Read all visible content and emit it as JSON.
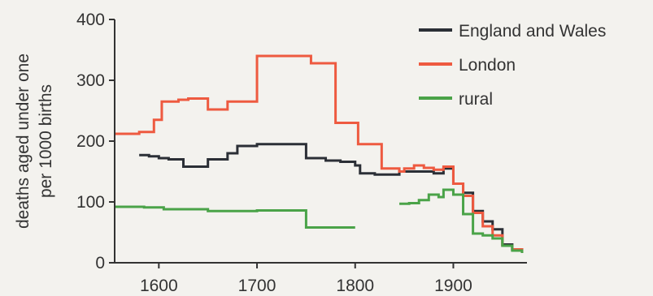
{
  "chart_data": {
    "type": "line",
    "step": true,
    "ylabel_lines": [
      "deaths aged under one",
      "per 1000 births"
    ],
    "xlim": [
      1555,
      1975
    ],
    "ylim": [
      0,
      400
    ],
    "x_ticks": [
      1600,
      1700,
      1800,
      1900
    ],
    "y_ticks": [
      0,
      100,
      200,
      300,
      400
    ],
    "legend_position": "top-right",
    "series": [
      {
        "name": "England and Wales",
        "color": "#2b2f36",
        "segments": [
          [
            [
              1580,
              177
            ],
            [
              1590,
              175
            ],
            [
              1600,
              172
            ],
            [
              1610,
              170
            ],
            [
              1625,
              158
            ],
            [
              1650,
              170
            ],
            [
              1670,
              180
            ],
            [
              1680,
              192
            ],
            [
              1700,
              195
            ],
            [
              1750,
              172
            ],
            [
              1770,
              168
            ],
            [
              1785,
              166
            ],
            [
              1800,
              160
            ],
            [
              1805,
              147
            ],
            [
              1820,
              145
            ],
            [
              1845,
              150
            ],
            [
              1870,
              150
            ],
            [
              1880,
              147
            ],
            [
              1890,
              155
            ],
            [
              1900,
              130
            ],
            [
              1910,
              115
            ],
            [
              1920,
              85
            ],
            [
              1930,
              68
            ],
            [
              1940,
              55
            ],
            [
              1950,
              30
            ],
            [
              1960,
              22
            ],
            [
              1970,
              18
            ]
          ]
        ]
      },
      {
        "name": "London",
        "color": "#ee5a40",
        "segments": [
          [
            [
              1555,
              212
            ],
            [
              1580,
              215
            ],
            [
              1595,
              235
            ],
            [
              1603,
              265
            ],
            [
              1620,
              268
            ],
            [
              1630,
              270
            ],
            [
              1650,
              252
            ],
            [
              1670,
              265
            ],
            [
              1685,
              265
            ],
            [
              1700,
              340
            ],
            [
              1750,
              340
            ],
            [
              1755,
              328
            ],
            [
              1775,
              328
            ],
            [
              1780,
              230
            ],
            [
              1800,
              230
            ],
            [
              1803,
              195
            ],
            [
              1825,
              195
            ],
            [
              1827,
              155
            ],
            [
              1845,
              150
            ],
            [
              1850,
              155
            ],
            [
              1860,
              160
            ],
            [
              1870,
              156
            ],
            [
              1880,
              153
            ],
            [
              1890,
              158
            ],
            [
              1900,
              130
            ],
            [
              1910,
              110
            ],
            [
              1920,
              82
            ],
            [
              1930,
              60
            ],
            [
              1940,
              45
            ],
            [
              1950,
              28
            ],
            [
              1960,
              22
            ],
            [
              1970,
              16
            ]
          ]
        ]
      },
      {
        "name": "rural",
        "color": "#4aa348",
        "segments": [
          [
            [
              1555,
              92
            ],
            [
              1585,
              91
            ],
            [
              1605,
              88
            ],
            [
              1630,
              88
            ],
            [
              1650,
              85
            ],
            [
              1680,
              85
            ],
            [
              1700,
              86
            ],
            [
              1750,
              58
            ],
            [
              1800,
              58
            ]
          ],
          [
            [
              1845,
              97
            ],
            [
              1855,
              98
            ],
            [
              1865,
              103
            ],
            [
              1875,
              112
            ],
            [
              1885,
              108
            ],
            [
              1890,
              120
            ],
            [
              1900,
              112
            ],
            [
              1910,
              80
            ],
            [
              1920,
              48
            ],
            [
              1930,
              45
            ],
            [
              1940,
              40
            ],
            [
              1950,
              28
            ],
            [
              1960,
              20
            ],
            [
              1970,
              16
            ]
          ]
        ]
      }
    ]
  }
}
